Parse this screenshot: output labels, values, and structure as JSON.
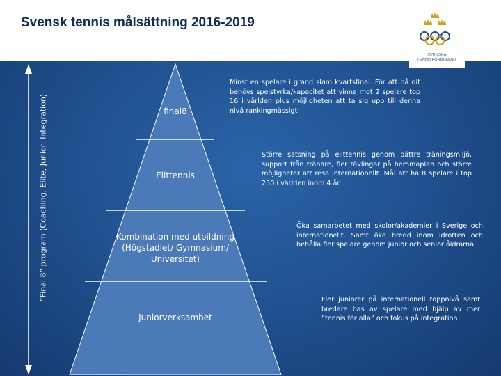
{
  "slide": {
    "title": "Svensk tennis målsättning 2016-2019",
    "side_label": "”Final 8” program (Coaching, Elite, Junior, Integration)",
    "logo_text": [
      "SVENSKA",
      "TENNISFÖRBUNDET"
    ]
  },
  "pyramid": {
    "tiers": [
      {
        "label": "final8"
      },
      {
        "label": "Elittennis"
      },
      {
        "label": "Kombination med utbildning (Högstadiet/ Gymnasium/ Universitet)"
      },
      {
        "label": "Juniorverksamhet"
      }
    ]
  },
  "descriptions": [
    "Minst en spelare i grand slam kvartsfinal. För att nå dit behövs spelstyrka/kapacitet att vinna mot 2 spelare top 16 i världen plus möjligheten att ta sig upp till denna nivå rankingmässigt",
    "Större satsning på elittennis genom bättre träningsmiljö, support från tränare, fler tävlingar på hemmaplan och större möjligheter att resa internationellt. Mål att ha 8 spelare i top 250 i världen inom 4 år",
    "Öka samarbetet med skolor/akademier i Sverige och internationellt. Samt öka bredd inom idrotten och behålla fler spelare genom junior och senior åldrarna",
    "Fler juniorer på internationell toppnivå samt bredare bas av spelare med hjälp av mer ”tennis för alla” och fokus på integration"
  ],
  "colors": {
    "background": "#1f4e8c",
    "pyramid_fill": "#4a7ab8",
    "pyramid_divider": "#ffffff",
    "title": "#0f2d57",
    "logo_blue": "#1f4e8c",
    "logo_gold": "#d4a017"
  }
}
